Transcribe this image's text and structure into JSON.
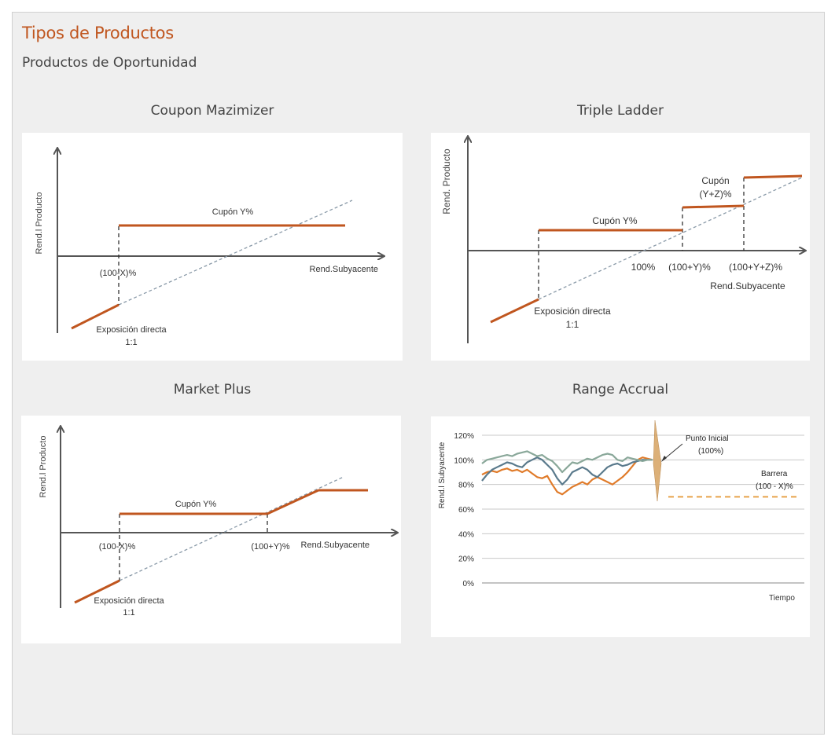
{
  "header": {
    "title": "Tipos de Productos",
    "subtitle": "Productos de Oportunidad"
  },
  "colors": {
    "payoff": "#c0561f",
    "diagonal": "#8a9aa8",
    "axis": "#555555",
    "series1": "#e07b2a",
    "series2": "#5a7a8c",
    "series3": "#8aa89a",
    "barrier": "#e8a24a"
  },
  "panels": {
    "coupon": {
      "title": "Coupon Mazimizer",
      "ylabel": "Rend.l Producto",
      "xlabel": "Rend.Subyacente",
      "coupon": "Cupón Y%",
      "strike": "(100-X)%",
      "exposure1": "Exposición directa",
      "exposure2": "1:1"
    },
    "ladder": {
      "title": "Triple Ladder",
      "ylabel": "Rend. Producto",
      "xlabel": "Rend.Subyacente",
      "coupon1": "Cupón Y%",
      "coupon2a": "Cupón",
      "coupon2b": "(Y+Z)%",
      "tick1": "100%",
      "tick2": "(100+Y)%",
      "tick3": "(100+Y+Z)%",
      "exposure1": "Exposición directa",
      "exposure2": "1:1"
    },
    "market": {
      "title": "Market Plus",
      "ylabel": "Rend.l Producto",
      "xlabel": "Rend.Subyacente",
      "coupon": "Cupón Y%",
      "strike1": "(100-X)%",
      "strike2": "(100+Y)%",
      "exposure1": "Exposición directa",
      "exposure2": "1:1"
    },
    "range": {
      "title": "Range Accrual",
      "ylabel": "Rend.l Subyacente",
      "xlabel": "Tiempo",
      "initial1": "Punto Inicial",
      "initial2": "(100%)",
      "barrier1": "Barrera",
      "barrier2": "(100 - X)%"
    }
  },
  "chart_data": {
    "type": "line",
    "title": "Range Accrual",
    "xlabel": "Tiempo",
    "ylabel": "Rend.l Subyacente",
    "ylim": [
      0,
      120
    ],
    "yticks": [
      "0%",
      "20%",
      "40%",
      "60%",
      "80%",
      "100%",
      "120%"
    ],
    "grid": true,
    "barrier": 70,
    "initial_point": 100,
    "series": [
      {
        "color": "#e07b2a",
        "values": [
          88,
          90,
          91,
          90,
          92,
          93,
          91,
          92,
          90,
          92,
          89,
          86,
          85,
          87,
          80,
          74,
          72,
          75,
          78,
          80,
          82,
          80,
          84,
          86,
          84,
          82,
          80,
          83,
          86,
          90,
          95,
          100,
          102,
          101,
          100
        ]
      },
      {
        "color": "#5a7a8c",
        "values": [
          83,
          88,
          92,
          94,
          96,
          98,
          97,
          95,
          94,
          98,
          100,
          102,
          100,
          96,
          92,
          85,
          80,
          84,
          90,
          92,
          94,
          92,
          88,
          86,
          90,
          94,
          96,
          97,
          95,
          96,
          98,
          99,
          100,
          100,
          100
        ]
      },
      {
        "color": "#8aa89a",
        "values": [
          97,
          100,
          101,
          102,
          103,
          104,
          103,
          105,
          106,
          107,
          105,
          103,
          104,
          101,
          99,
          95,
          90,
          94,
          98,
          97,
          99,
          101,
          100,
          102,
          104,
          105,
          104,
          100,
          99,
          102,
          101,
          100,
          99,
          100,
          100
        ]
      }
    ]
  }
}
